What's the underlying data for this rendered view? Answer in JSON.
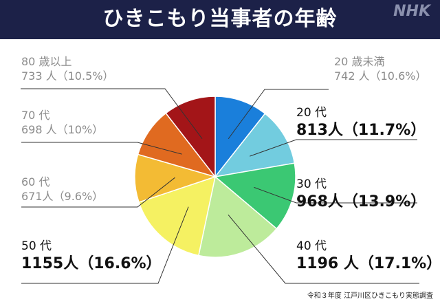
{
  "header": {
    "title": "ひきこもり当事者の年齢",
    "logo_text": "NHK"
  },
  "source_note": "令和３年度 江戸川区ひきこもり実態調査",
  "colors": {
    "header_bg": "#1c2148",
    "slices": [
      "#1a7fdb",
      "#72ccdf",
      "#3bc873",
      "#bdeb9b",
      "#f5f162",
      "#f3bb34",
      "#e06a20",
      "#a31518"
    ]
  },
  "chart_data": {
    "type": "pie",
    "title": "ひきこもり当事者の年齢",
    "categories": [
      "20 歳未満",
      "20 代",
      "30 代",
      "40 代",
      "50 代",
      "60 代",
      "70 代",
      "80 歳以上"
    ],
    "values": [
      742,
      813,
      968,
      1196,
      1155,
      671,
      698,
      733
    ],
    "labels": [
      {
        "line1": "20 歳未満",
        "line2": "742 人（10.6%）",
        "style": "small"
      },
      {
        "line1": "20 代",
        "line2": "813人（11.7%）",
        "style": "big"
      },
      {
        "line1": "30 代",
        "line2": "968人（13.9%）",
        "style": "big"
      },
      {
        "line1": "40 代",
        "line2": "1196 人（17.1%）",
        "style": "big"
      },
      {
        "line1": "50 代",
        "line2": "1155人（16.6%）",
        "style": "big"
      },
      {
        "line1": "60 代",
        "line2": "671人（9.6%）",
        "style": "small"
      },
      {
        "line1": "70 代",
        "line2": "698 人（10%）",
        "style": "small"
      },
      {
        "line1": "80 歳以上",
        "line2": "733 人（10.5%）",
        "style": "small"
      }
    ]
  }
}
